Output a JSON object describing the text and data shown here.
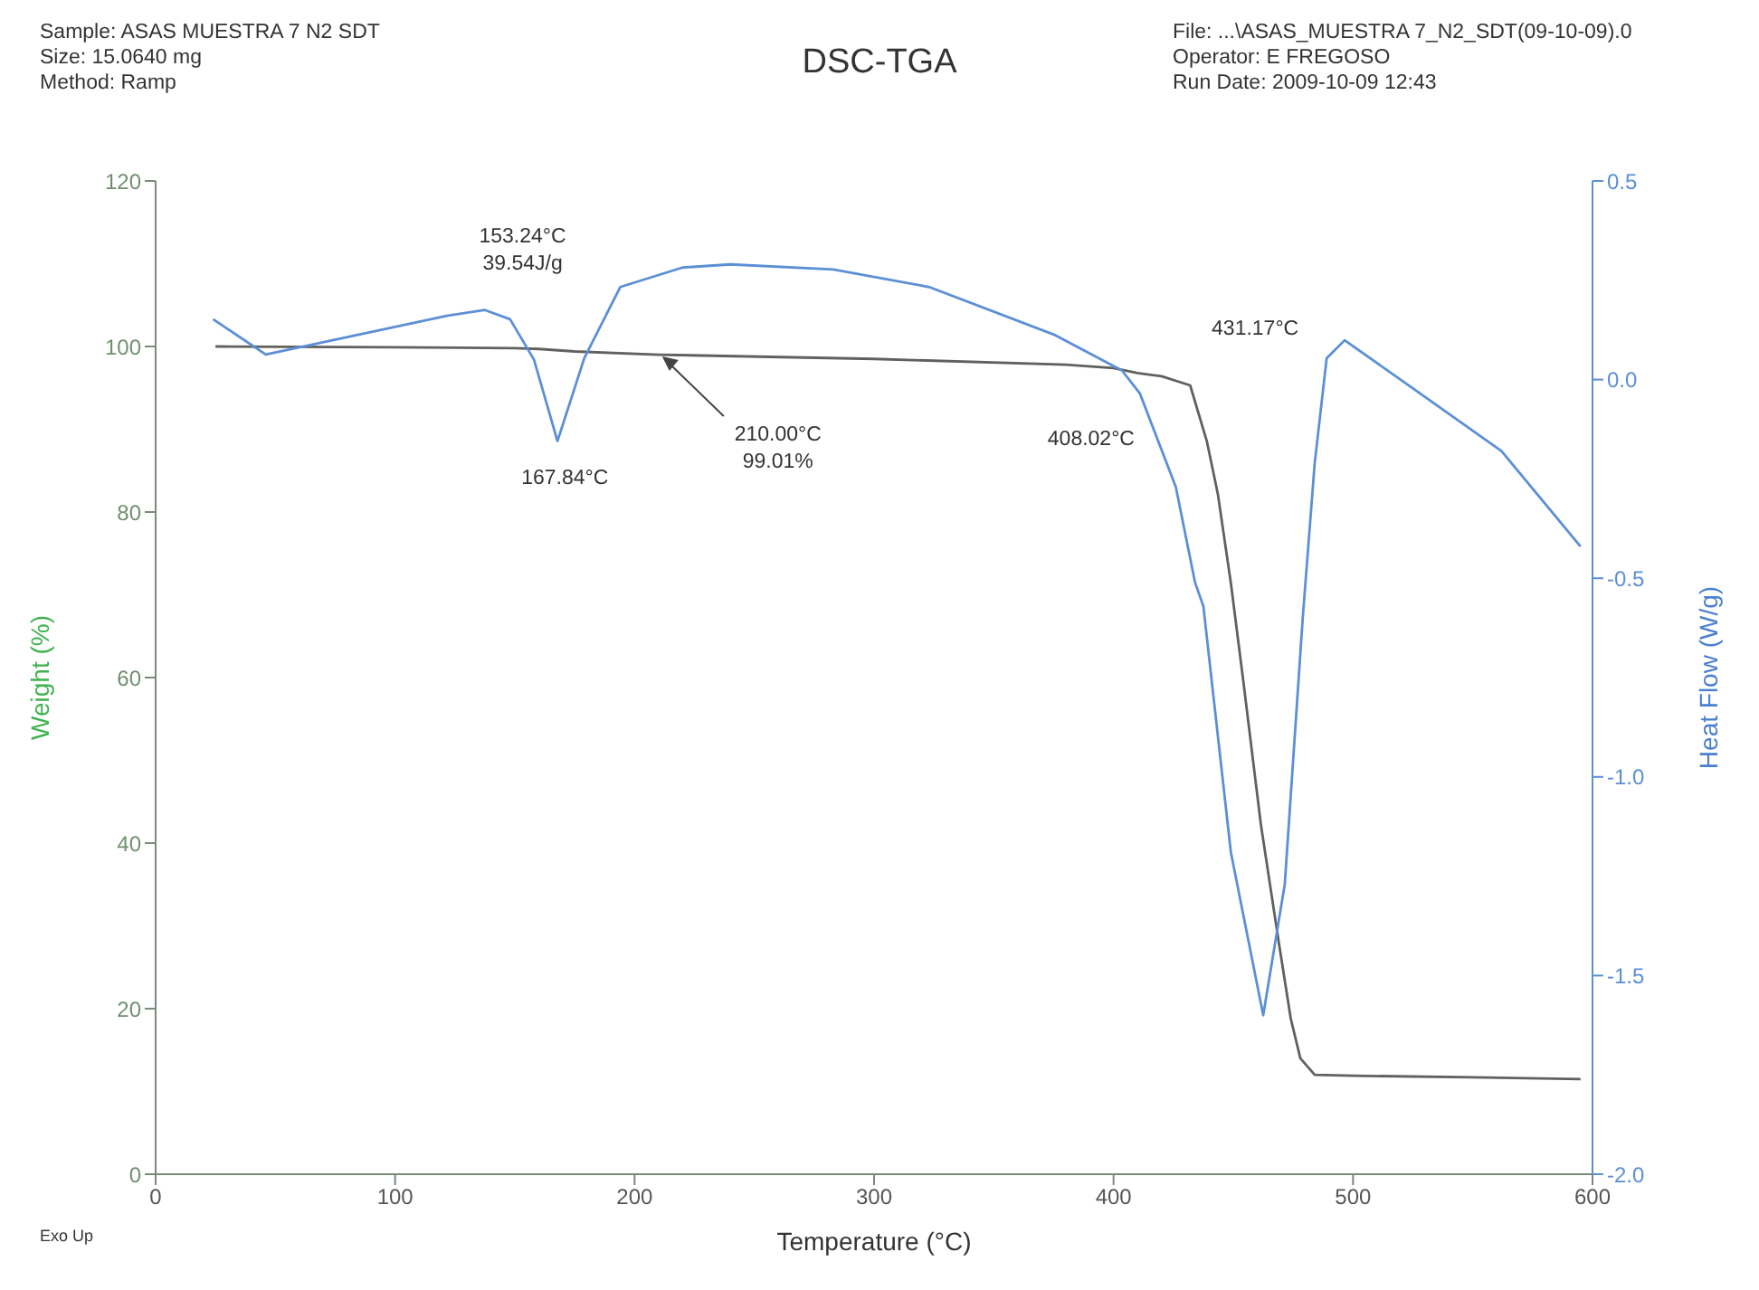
{
  "chart_data": {
    "type": "line",
    "title": "DSC-TGA",
    "xlabel": "Temperature (°C)",
    "ylabel": "Weight (%)",
    "y2label": "Heat Flow (W/g)",
    "xlim": [
      0,
      600
    ],
    "xticks": [
      0,
      100,
      200,
      300,
      400,
      500,
      600
    ],
    "ylim": [
      0,
      120
    ],
    "yticks": [
      0,
      20,
      40,
      60,
      80,
      100,
      120
    ],
    "y2lim": [
      -2,
      0.5
    ],
    "y2ticks": [
      {
        "value": -2,
        "label": "-2.0"
      },
      -1.5,
      {
        "value": -1,
        "label": "-1.0"
      },
      -0.5,
      {
        "value": 0,
        "label": "0.0"
      },
      0.5
    ],
    "grid": false,
    "series": [
      {
        "color": "#5f625c",
        "x": [
          25,
          100,
          150,
          160,
          175,
          210,
          300,
          380,
          400,
          410,
          420,
          432,
          439,
          443.6,
          449,
          454,
          461.5,
          469,
          474,
          478,
          484,
          500,
          550,
          595
        ],
        "values": [
          100,
          99.9,
          99.8,
          99.7,
          99.4,
          99.01,
          98.5,
          97.8,
          97.4,
          96.8,
          96.4,
          95.3,
          88.5,
          82.1,
          71.4,
          60,
          42.3,
          28,
          18.8,
          14,
          12,
          11.9,
          11.7,
          11.5
        ]
      },
      {
        "color": "#5b8fd6",
        "axis": "y2",
        "x": [
          24,
          46,
          122,
          137.5,
          148,
          158,
          167.8,
          179,
          194,
          220,
          240,
          283,
          323,
          375.6,
          403.5,
          411,
          426,
          434,
          437.5,
          449,
          462.5,
          471.5,
          479,
          484,
          489,
          496.5,
          524.5,
          562,
          595
        ],
        "values": [
          0.152,
          0.063,
          0.161,
          0.175,
          0.152,
          0.05,
          -0.155,
          0.054,
          0.233,
          0.282,
          0.29,
          0.277,
          0.233,
          0.112,
          0.023,
          -0.035,
          -0.27,
          -0.51,
          -0.57,
          -1.19,
          -1.6,
          -1.27,
          -0.6,
          -0.21,
          0.054,
          0.099,
          -0.02,
          -0.18,
          -0.42
        ]
      }
    ],
    "annotations": [
      {
        "text": "153.24°C\n39.54J/g",
        "x": 153.24,
        "y": 101.8
      },
      {
        "text": "167.84°C",
        "x": 167.84,
        "y": 88.6
      },
      {
        "text": "210.00°C\n99.01%",
        "x": 210,
        "y": 99.01
      },
      {
        "text": "408.02°C",
        "x": 408.02,
        "y": 97.1
      },
      {
        "text": "431.17°C",
        "x": 431.17,
        "y": 95.3
      },
      "Sample: ASAS MUESTRA 7 N2 SDT",
      "Size:  15.0640 mg",
      "Method: Ramp",
      "File: ...\\ASAS_MUESTRA 7_N2_SDT(09-10-09).0",
      "Operator: E FREGOSO",
      "Run Date: 2009-10-09 12:43",
      "Exo Up"
    ]
  }
}
